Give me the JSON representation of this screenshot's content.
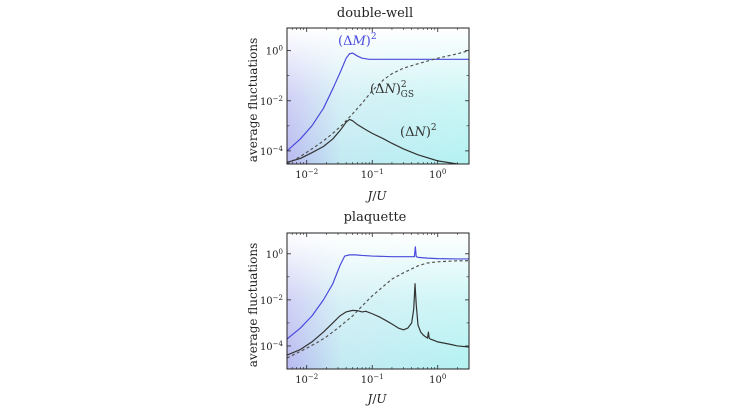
{
  "chart_data": [
    {
      "type": "line",
      "title": "double-well",
      "xlabel": "J/U",
      "ylabel": "average fluctuations",
      "xscale": "log",
      "yscale": "log",
      "xlim": [
        0.005,
        3.0
      ],
      "ylim": [
        3e-05,
        8
      ],
      "xticks": [
        "10^-2",
        "10^-1",
        "10^0"
      ],
      "yticks": [
        "10^-4",
        "10^-2",
        "10^0"
      ],
      "grid": false,
      "background": "gradient: lavender (left) to cyan (right)",
      "series": [
        {
          "name": "(ΔM)^2",
          "color": "#4b4bdc",
          "style": "solid",
          "x": [
            0.005,
            0.008,
            0.012,
            0.018,
            0.025,
            0.033,
            0.04,
            0.045,
            0.05,
            0.06,
            0.07,
            0.09,
            0.12,
            0.2,
            0.5,
            1.0,
            3.0
          ],
          "y": [
            0.0001,
            0.0003,
            0.001,
            0.005,
            0.03,
            0.15,
            0.5,
            0.75,
            0.8,
            0.6,
            0.5,
            0.45,
            0.45,
            0.45,
            0.45,
            0.45,
            0.45
          ]
        },
        {
          "name": "(ΔN)^2_GS",
          "color": "#555555",
          "style": "dashed",
          "x": [
            0.005,
            0.008,
            0.012,
            0.018,
            0.025,
            0.035,
            0.05,
            0.07,
            0.1,
            0.15,
            0.2,
            0.3,
            0.5,
            1.0,
            2.0,
            3.0
          ],
          "y": [
            3e-05,
            6e-05,
            0.00012,
            0.00025,
            0.0005,
            0.0011,
            0.003,
            0.008,
            0.025,
            0.07,
            0.12,
            0.2,
            0.3,
            0.5,
            0.75,
            1.0
          ]
        },
        {
          "name": "(ΔN)^2",
          "color": "#333333",
          "style": "solid",
          "x": [
            0.005,
            0.008,
            0.012,
            0.018,
            0.025,
            0.033,
            0.04,
            0.045,
            0.05,
            0.06,
            0.08,
            0.1,
            0.15,
            0.2,
            0.3,
            0.5,
            1.0,
            2.0,
            3.0
          ],
          "y": [
            3.5e-05,
            5e-05,
            8.5e-05,
            0.00015,
            0.0003,
            0.0007,
            0.0014,
            0.0018,
            0.0016,
            0.0011,
            0.0007,
            0.0005,
            0.0003,
            0.0002,
            0.00012,
            7e-05,
            4e-05,
            3e-05,
            2.8e-05
          ]
        }
      ],
      "annotations": [
        "(ΔM)^2",
        "(ΔN)^2_GS",
        "(ΔN)^2"
      ]
    },
    {
      "type": "line",
      "title": "plaquette",
      "xlabel": "J/U",
      "ylabel": "average fluctuations",
      "xscale": "log",
      "yscale": "log",
      "xlim": [
        0.005,
        3.0
      ],
      "ylim": [
        1e-05,
        8
      ],
      "xticks": [
        "10^-2",
        "10^-1",
        "10^0"
      ],
      "yticks": [
        "10^-4",
        "10^-2",
        "10^0"
      ],
      "grid": false,
      "background": "gradient: lavender (left) to cyan (right)",
      "series": [
        {
          "name": "",
          "color": "#4b4bdc",
          "style": "solid",
          "x": [
            0.005,
            0.008,
            0.012,
            0.018,
            0.025,
            0.032,
            0.038,
            0.045,
            0.055,
            0.07,
            0.1,
            0.2,
            0.4,
            0.44,
            0.455,
            0.47,
            0.5,
            0.7,
            1.0,
            2.0,
            3.0
          ],
          "y": [
            0.0002,
            0.0006,
            0.002,
            0.01,
            0.05,
            0.3,
            0.8,
            0.9,
            0.9,
            0.85,
            0.8,
            0.75,
            0.75,
            0.75,
            2.0,
            0.75,
            0.7,
            0.65,
            0.62,
            0.6,
            0.6
          ]
        },
        {
          "name": "",
          "color": "#555555",
          "style": "dashed",
          "x": [
            0.005,
            0.01,
            0.015,
            0.02,
            0.03,
            0.05,
            0.08,
            0.1,
            0.15,
            0.2,
            0.3,
            0.5,
            0.7,
            1.0,
            2.0,
            3.0
          ],
          "y": [
            3e-05,
            8e-05,
            0.00015,
            0.00025,
            0.0006,
            0.002,
            0.008,
            0.015,
            0.04,
            0.08,
            0.15,
            0.3,
            0.4,
            0.45,
            0.5,
            0.5
          ]
        },
        {
          "name": "",
          "color": "#333333",
          "style": "solid",
          "x": [
            0.005,
            0.008,
            0.012,
            0.018,
            0.025,
            0.032,
            0.04,
            0.05,
            0.06,
            0.07,
            0.08,
            0.1,
            0.13,
            0.16,
            0.2,
            0.25,
            0.3,
            0.35,
            0.4,
            0.43,
            0.45,
            0.47,
            0.5,
            0.55,
            0.6,
            0.65,
            0.7,
            0.72,
            0.74,
            0.77,
            0.85,
            1.0,
            1.5,
            2.0,
            3.0
          ],
          "y": [
            4e-05,
            7e-05,
            0.00015,
            0.0004,
            0.001,
            0.002,
            0.003,
            0.0035,
            0.0034,
            0.003,
            0.0032,
            0.0025,
            0.0018,
            0.0013,
            0.0009,
            0.0006,
            0.0005,
            0.0006,
            0.001,
            0.004,
            0.05,
            0.006,
            0.0008,
            0.0004,
            0.0003,
            0.00025,
            0.00022,
            0.0004,
            0.00022,
            0.0002,
            0.00018,
            0.00015,
            0.00012,
            0.0001,
            9e-05
          ]
        }
      ],
      "annotations": []
    }
  ]
}
